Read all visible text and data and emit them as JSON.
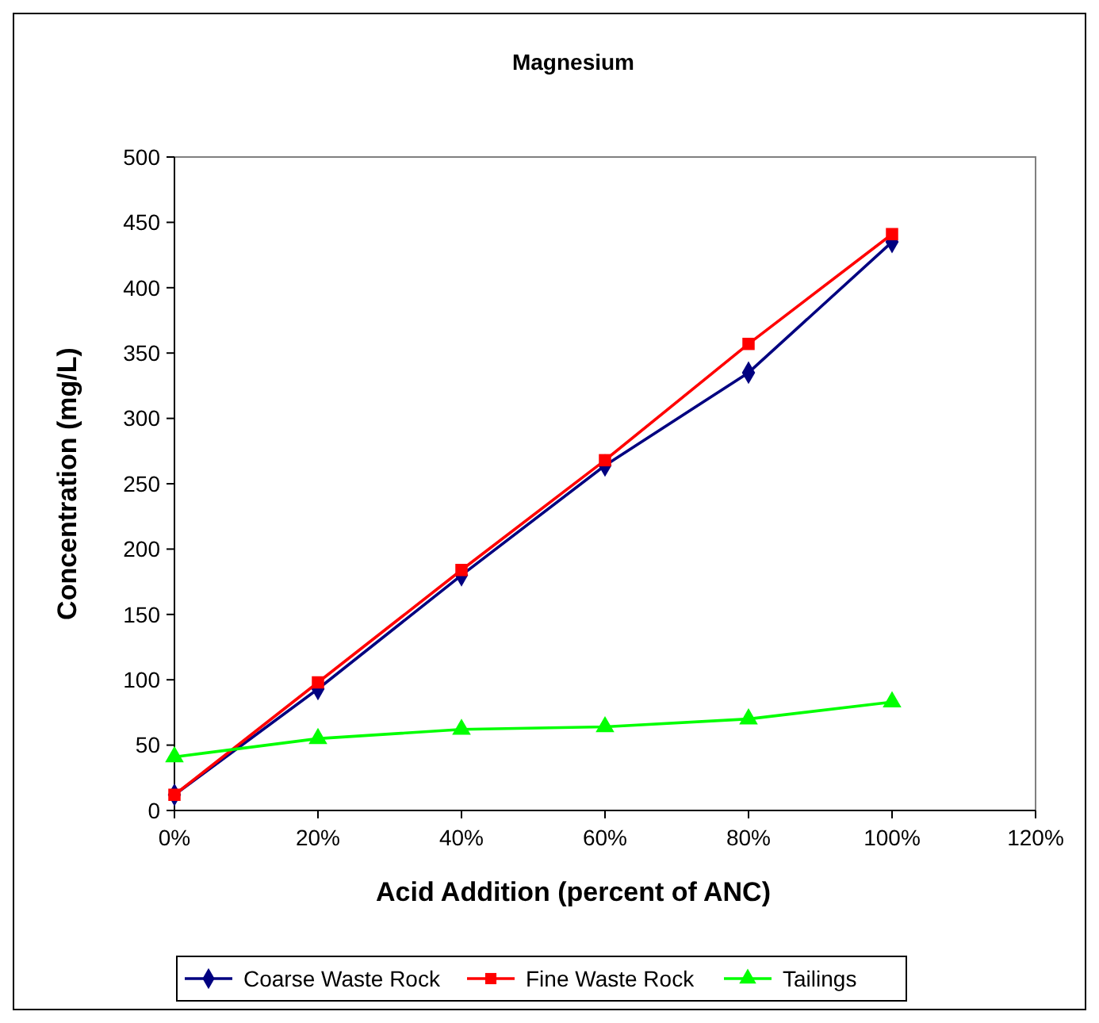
{
  "chart_data": {
    "type": "line",
    "title": "Magnesium",
    "xlabel": "Acid Addition (percent of ANC)",
    "ylabel": "Concentration  (mg/L)",
    "x": [
      0,
      20,
      40,
      60,
      80,
      100
    ],
    "series": [
      {
        "name": "Coarse Waste Rock",
        "color": "#000080",
        "marker": "diamond",
        "values": [
          12,
          93,
          180,
          264,
          335,
          435
        ]
      },
      {
        "name": "Fine Waste Rock",
        "color": "#ff0000",
        "marker": "square",
        "values": [
          12,
          98,
          184,
          268,
          357,
          441
        ]
      },
      {
        "name": "Tailings",
        "color": "#00ff00",
        "marker": "triangle",
        "values": [
          41,
          55,
          62,
          64,
          70,
          83
        ]
      }
    ],
    "xlim": [
      0,
      120
    ],
    "xticks": [
      {
        "value": 0,
        "label": "0%"
      },
      {
        "value": 20,
        "label": "20%"
      },
      {
        "value": 40,
        "label": "40%"
      },
      {
        "value": 60,
        "label": "60%"
      },
      {
        "value": 80,
        "label": "80%"
      },
      {
        "value": 100,
        "label": "100%"
      },
      {
        "value": 120,
        "label": "120%"
      }
    ],
    "ylim": [
      0,
      500
    ],
    "yticks": [
      0,
      50,
      100,
      150,
      200,
      250,
      300,
      350,
      400,
      450,
      500
    ],
    "grid": false,
    "legend": "bottom",
    "line_style": "solid"
  }
}
